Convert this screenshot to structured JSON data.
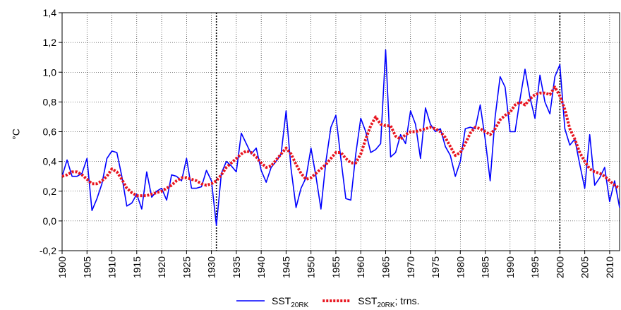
{
  "chart_data": {
    "type": "line",
    "y_label": "°C",
    "x": [
      1900,
      1901,
      1902,
      1903,
      1904,
      1905,
      1906,
      1907,
      1908,
      1909,
      1910,
      1911,
      1912,
      1913,
      1914,
      1915,
      1916,
      1917,
      1918,
      1919,
      1920,
      1921,
      1922,
      1923,
      1924,
      1925,
      1926,
      1927,
      1928,
      1929,
      1930,
      1931,
      1932,
      1933,
      1934,
      1935,
      1936,
      1937,
      1938,
      1939,
      1940,
      1941,
      1942,
      1943,
      1944,
      1945,
      1946,
      1947,
      1948,
      1949,
      1950,
      1951,
      1952,
      1953,
      1954,
      1955,
      1956,
      1957,
      1958,
      1959,
      1960,
      1961,
      1962,
      1963,
      1964,
      1965,
      1966,
      1967,
      1968,
      1969,
      1970,
      1971,
      1972,
      1973,
      1974,
      1975,
      1976,
      1977,
      1978,
      1979,
      1980,
      1981,
      1982,
      1983,
      1984,
      1985,
      1986,
      1987,
      1988,
      1989,
      1990,
      1991,
      1992,
      1993,
      1994,
      1995,
      1996,
      1997,
      1998,
      1999,
      2000,
      2001,
      2002,
      2003,
      2004,
      2005,
      2006,
      2007,
      2008,
      2009,
      2010,
      2011,
      2012
    ],
    "series": [
      {
        "name": "SST20RK",
        "color": "#0000ff",
        "dash": "solid",
        "values": [
          0.3,
          0.41,
          0.3,
          0.3,
          0.32,
          0.42,
          0.07,
          0.15,
          0.25,
          0.42,
          0.47,
          0.46,
          0.3,
          0.1,
          0.12,
          0.18,
          0.08,
          0.33,
          0.16,
          0.2,
          0.22,
          0.14,
          0.31,
          0.3,
          0.27,
          0.42,
          0.22,
          0.22,
          0.23,
          0.34,
          0.27,
          -0.03,
          0.32,
          0.4,
          0.37,
          0.33,
          0.59,
          0.52,
          0.45,
          0.49,
          0.34,
          0.26,
          0.36,
          0.4,
          0.45,
          0.74,
          0.35,
          0.09,
          0.22,
          0.29,
          0.49,
          0.3,
          0.08,
          0.4,
          0.63,
          0.71,
          0.42,
          0.15,
          0.14,
          0.45,
          0.69,
          0.6,
          0.46,
          0.48,
          0.52,
          1.15,
          0.43,
          0.46,
          0.58,
          0.52,
          0.74,
          0.65,
          0.42,
          0.76,
          0.65,
          0.6,
          0.62,
          0.5,
          0.44,
          0.3,
          0.4,
          0.62,
          0.63,
          0.62,
          0.78,
          0.55,
          0.27,
          0.7,
          0.97,
          0.9,
          0.6,
          0.6,
          0.82,
          1.02,
          0.83,
          0.69,
          0.98,
          0.8,
          0.72,
          0.97,
          1.05,
          0.62,
          0.51,
          0.55,
          0.38,
          0.22,
          0.58,
          0.24,
          0.29,
          0.36,
          0.13,
          0.27,
          0.09
        ]
      },
      {
        "name": "SST20RK; trns.",
        "color": "#e8141e",
        "dash": "dotted",
        "values": [
          0.3,
          0.31,
          0.33,
          0.33,
          0.31,
          0.28,
          0.25,
          0.25,
          0.27,
          0.3,
          0.35,
          0.33,
          0.28,
          0.22,
          0.19,
          0.17,
          0.17,
          0.17,
          0.18,
          0.19,
          0.2,
          0.22,
          0.24,
          0.27,
          0.29,
          0.29,
          0.28,
          0.27,
          0.25,
          0.24,
          0.25,
          0.27,
          0.31,
          0.36,
          0.39,
          0.42,
          0.45,
          0.47,
          0.46,
          0.43,
          0.39,
          0.36,
          0.37,
          0.41,
          0.45,
          0.49,
          0.45,
          0.38,
          0.32,
          0.28,
          0.29,
          0.32,
          0.35,
          0.38,
          0.42,
          0.46,
          0.46,
          0.42,
          0.39,
          0.39,
          0.45,
          0.55,
          0.64,
          0.7,
          0.65,
          0.64,
          0.64,
          0.57,
          0.55,
          0.58,
          0.6,
          0.6,
          0.61,
          0.62,
          0.63,
          0.62,
          0.6,
          0.56,
          0.5,
          0.44,
          0.46,
          0.52,
          0.59,
          0.63,
          0.62,
          0.6,
          0.58,
          0.62,
          0.68,
          0.71,
          0.73,
          0.78,
          0.8,
          0.78,
          0.82,
          0.85,
          0.86,
          0.86,
          0.85,
          0.9,
          0.84,
          0.75,
          0.62,
          0.55,
          0.46,
          0.4,
          0.35,
          0.33,
          0.32,
          0.3,
          0.27,
          0.24,
          0.22
        ]
      }
    ],
    "xlim": [
      1900,
      2012
    ],
    "xticks": [
      1900,
      1905,
      1910,
      1915,
      1920,
      1925,
      1930,
      1935,
      1940,
      1945,
      1950,
      1955,
      1960,
      1965,
      1970,
      1975,
      1980,
      1985,
      1990,
      1995,
      2000,
      2005,
      2010
    ],
    "ylim": [
      -0.2,
      1.4
    ],
    "yticks": [
      {
        "value": -0.2,
        "label": "-0,2"
      },
      {
        "value": 0,
        "label": "0,0"
      },
      {
        "value": 0.2,
        "label": "0,2"
      },
      {
        "value": 0.4,
        "label": "0,4"
      },
      {
        "value": 0.6,
        "label": "0,6"
      },
      {
        "value": 0.8,
        "label": "0,8"
      },
      {
        "value": 1.0,
        "label": "1,0"
      },
      {
        "value": 1.2,
        "label": "1,2"
      },
      {
        "value": 1.4,
        "label": "1,4"
      }
    ],
    "vlines": [
      1931,
      2000
    ],
    "grid": true,
    "legend": "bottom"
  }
}
